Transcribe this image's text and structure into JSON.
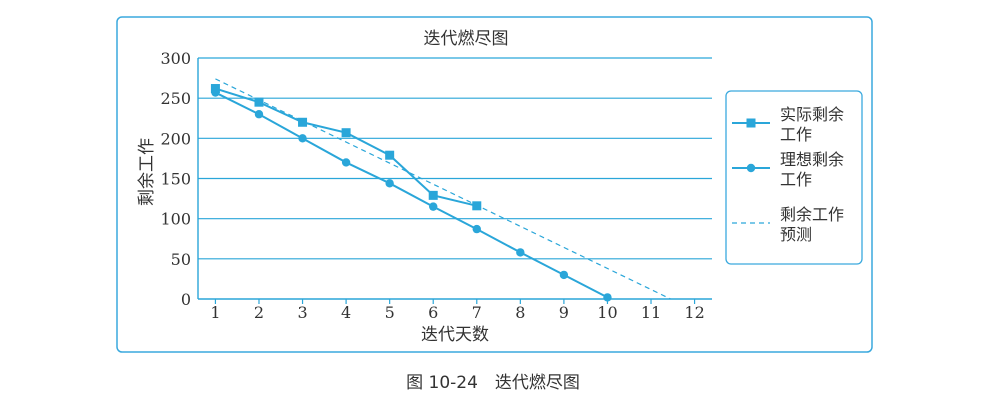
{
  "chart_data": {
    "type": "line",
    "title": "迭代燃尽图",
    "xlabel": "迭代天数",
    "ylabel": "剩余工作",
    "x_ticks": [
      1,
      2,
      3,
      4,
      5,
      6,
      7,
      8,
      9,
      10,
      11,
      12
    ],
    "y_ticks": [
      0,
      50,
      100,
      150,
      200,
      250,
      300
    ],
    "xlim": [
      0.6,
      12.4
    ],
    "ylim": [
      0,
      300
    ],
    "grid": "horizontal",
    "legend_position": "right",
    "accent_color": "#2aa6d9",
    "series": [
      {
        "name": "实际剩余工作",
        "legend_lines": [
          "实际剩余",
          "工作"
        ],
        "marker": "square",
        "style": "solid",
        "x": [
          1,
          2,
          3,
          4,
          5,
          6,
          7
        ],
        "values": [
          262,
          245,
          220,
          207,
          179,
          129,
          116
        ]
      },
      {
        "name": "理想剩余工作",
        "legend_lines": [
          "理想剩余",
          "工作"
        ],
        "marker": "circle",
        "style": "solid",
        "x": [
          1,
          2,
          3,
          4,
          5,
          6,
          7,
          8,
          9,
          10
        ],
        "values": [
          257,
          230,
          200,
          170,
          144,
          115,
          87,
          58,
          30,
          2
        ]
      },
      {
        "name": "剩余工作预测",
        "legend_lines": [
          "剩余工作",
          "预测"
        ],
        "marker": "none",
        "style": "dashed",
        "x": [
          1,
          11.45
        ],
        "values": [
          274,
          0
        ]
      }
    ]
  },
  "caption": "图 10-24　迭代燃尽图"
}
